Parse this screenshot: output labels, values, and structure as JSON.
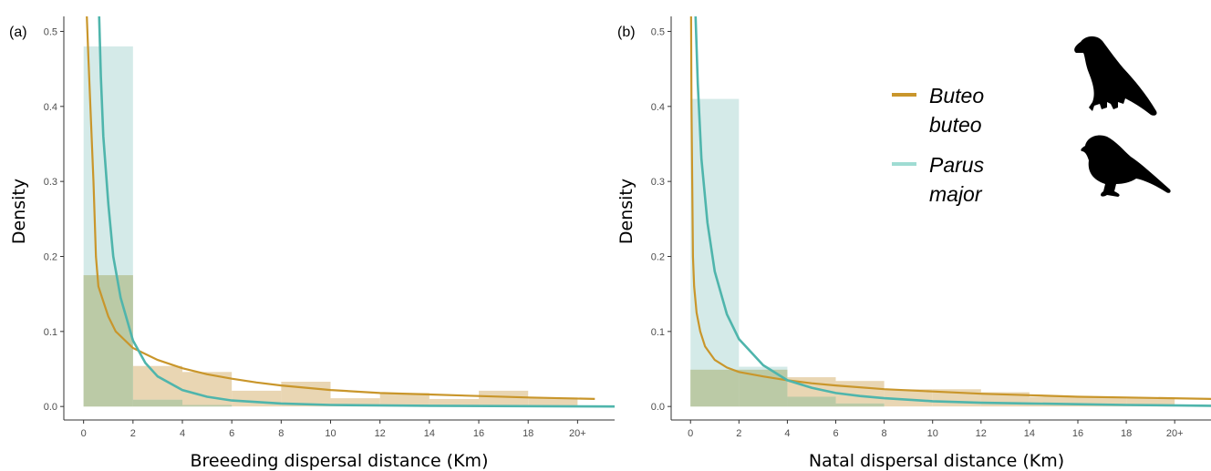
{
  "colors": {
    "buteo": "#c9962b",
    "buteo_fill": "#e2c89a",
    "parus": "#4fb5ac",
    "parus_fill": "#cde6e4",
    "overlap_fill": "#b8c7a0"
  },
  "legend": {
    "items": [
      {
        "line1": "Buteo",
        "line2": "buteo",
        "color": "#c9962b"
      },
      {
        "line1": "Parus",
        "line2": "major",
        "color": "#9fdcd3"
      }
    ],
    "icons": [
      "hawk-silhouette-icon",
      "tit-silhouette-icon"
    ]
  },
  "chart_data": [
    {
      "type": "histogram",
      "panel_label": "(a)",
      "xlabel": "Breeeding dispersal distance (Km)",
      "ylabel": "Density",
      "x_tick_labels": [
        "0",
        "2",
        "4",
        "6",
        "8",
        "10",
        "12",
        "14",
        "16",
        "18",
        "20+"
      ],
      "x_ticks": [
        0,
        2,
        4,
        6,
        8,
        10,
        12,
        14,
        16,
        18,
        20
      ],
      "y_ticks": [
        0,
        0.1,
        0.2,
        0.3,
        0.4,
        0.5
      ],
      "y_tick_labels": [
        "0.0",
        "0.1",
        "0.2",
        "0.3",
        "0.4",
        "0.5"
      ],
      "xlim": [
        -0.8,
        21.5
      ],
      "ylim": [
        -0.018,
        0.52
      ],
      "grid": false,
      "legend_position": "none",
      "series": [
        {
          "name": "Buteo buteo",
          "bins": [
            [
              0,
              2,
              0.175
            ],
            [
              2,
              4,
              0.054
            ],
            [
              4,
              6,
              0.046
            ],
            [
              6,
              8,
              0.021
            ],
            [
              8,
              10,
              0.033
            ],
            [
              10,
              12,
              0.011
            ],
            [
              12,
              14,
              0.018
            ],
            [
              14,
              16,
              0.01
            ],
            [
              16,
              18,
              0.021
            ],
            [
              18,
              20,
              0.012
            ]
          ],
          "curve": [
            [
              0.12,
              0.53
            ],
            [
              0.2,
              0.46
            ],
            [
              0.3,
              0.38
            ],
            [
              0.4,
              0.3
            ],
            [
              0.5,
              0.2
            ],
            [
              0.6,
              0.16
            ],
            [
              0.8,
              0.14
            ],
            [
              1.0,
              0.12
            ],
            [
              1.3,
              0.1
            ],
            [
              2,
              0.078
            ],
            [
              3,
              0.062
            ],
            [
              4,
              0.051
            ],
            [
              5,
              0.043
            ],
            [
              6,
              0.037
            ],
            [
              7,
              0.032
            ],
            [
              8,
              0.028
            ],
            [
              10,
              0.022
            ],
            [
              12,
              0.018
            ],
            [
              14,
              0.016
            ],
            [
              16,
              0.014
            ],
            [
              18,
              0.012
            ],
            [
              20.7,
              0.01
            ]
          ]
        },
        {
          "name": "Parus major",
          "bins": [
            [
              0,
              2,
              0.48
            ],
            [
              2,
              4,
              0.009
            ],
            [
              4,
              6,
              0.002
            ]
          ],
          "curve": [
            [
              0.62,
              0.53
            ],
            [
              0.7,
              0.44
            ],
            [
              0.8,
              0.36
            ],
            [
              1.0,
              0.27
            ],
            [
              1.2,
              0.2
            ],
            [
              1.5,
              0.145
            ],
            [
              2,
              0.088
            ],
            [
              2.5,
              0.058
            ],
            [
              3,
              0.04
            ],
            [
              4,
              0.022
            ],
            [
              5,
              0.013
            ],
            [
              6,
              0.008
            ],
            [
              8,
              0.004
            ],
            [
              10,
              0.002
            ],
            [
              14,
              0.001
            ],
            [
              21.5,
              0.0
            ]
          ]
        }
      ]
    },
    {
      "type": "histogram",
      "panel_label": "(b)",
      "xlabel": "Natal dispersal distance (Km)",
      "ylabel": "Density",
      "x_tick_labels": [
        "0",
        "2",
        "4",
        "6",
        "8",
        "10",
        "12",
        "14",
        "16",
        "18",
        "20+"
      ],
      "x_ticks": [
        0,
        2,
        4,
        6,
        8,
        10,
        12,
        14,
        16,
        18,
        20
      ],
      "y_ticks": [
        0,
        0.1,
        0.2,
        0.3,
        0.4,
        0.5
      ],
      "y_tick_labels": [
        "0.0",
        "0.1",
        "0.2",
        "0.3",
        "0.4",
        "0.5"
      ],
      "xlim": [
        -0.8,
        21.5
      ],
      "ylim": [
        -0.018,
        0.52
      ],
      "grid": false,
      "legend_position": "top-right",
      "series": [
        {
          "name": "Buteo buteo",
          "bins": [
            [
              0,
              2,
              0.049
            ],
            [
              2,
              4,
              0.049
            ],
            [
              4,
              6,
              0.039
            ],
            [
              6,
              8,
              0.034
            ],
            [
              8,
              10,
              0.023
            ],
            [
              10,
              12,
              0.023
            ],
            [
              12,
              14,
              0.019
            ],
            [
              14,
              16,
              0.013
            ],
            [
              16,
              18,
              0.013
            ],
            [
              18,
              20,
              0.011
            ]
          ],
          "curve": [
            [
              0.02,
              0.53
            ],
            [
              0.04,
              0.4
            ],
            [
              0.07,
              0.3
            ],
            [
              0.1,
              0.2
            ],
            [
              0.15,
              0.16
            ],
            [
              0.25,
              0.125
            ],
            [
              0.4,
              0.1
            ],
            [
              0.6,
              0.08
            ],
            [
              1,
              0.062
            ],
            [
              1.5,
              0.052
            ],
            [
              2,
              0.046
            ],
            [
              3,
              0.04
            ],
            [
              4,
              0.035
            ],
            [
              5,
              0.031
            ],
            [
              6,
              0.028
            ],
            [
              8,
              0.023
            ],
            [
              10,
              0.02
            ],
            [
              12,
              0.017
            ],
            [
              14,
              0.015
            ],
            [
              16,
              0.013
            ],
            [
              18,
              0.012
            ],
            [
              21.5,
              0.01
            ]
          ]
        },
        {
          "name": "Parus major",
          "bins": [
            [
              0,
              2,
              0.41
            ],
            [
              2,
              4,
              0.053
            ],
            [
              4,
              6,
              0.013
            ],
            [
              6,
              8,
              0.004
            ]
          ],
          "curve": [
            [
              0.2,
              0.53
            ],
            [
              0.3,
              0.43
            ],
            [
              0.45,
              0.33
            ],
            [
              0.7,
              0.245
            ],
            [
              1,
              0.18
            ],
            [
              1.5,
              0.123
            ],
            [
              2,
              0.09
            ],
            [
              3,
              0.055
            ],
            [
              4,
              0.035
            ],
            [
              5,
              0.025
            ],
            [
              6,
              0.018
            ],
            [
              7,
              0.014
            ],
            [
              8,
              0.011
            ],
            [
              10,
              0.007
            ],
            [
              12,
              0.005
            ],
            [
              14,
              0.004
            ],
            [
              16,
              0.003
            ],
            [
              18,
              0.002
            ],
            [
              21.5,
              0.001
            ]
          ]
        }
      ]
    }
  ]
}
